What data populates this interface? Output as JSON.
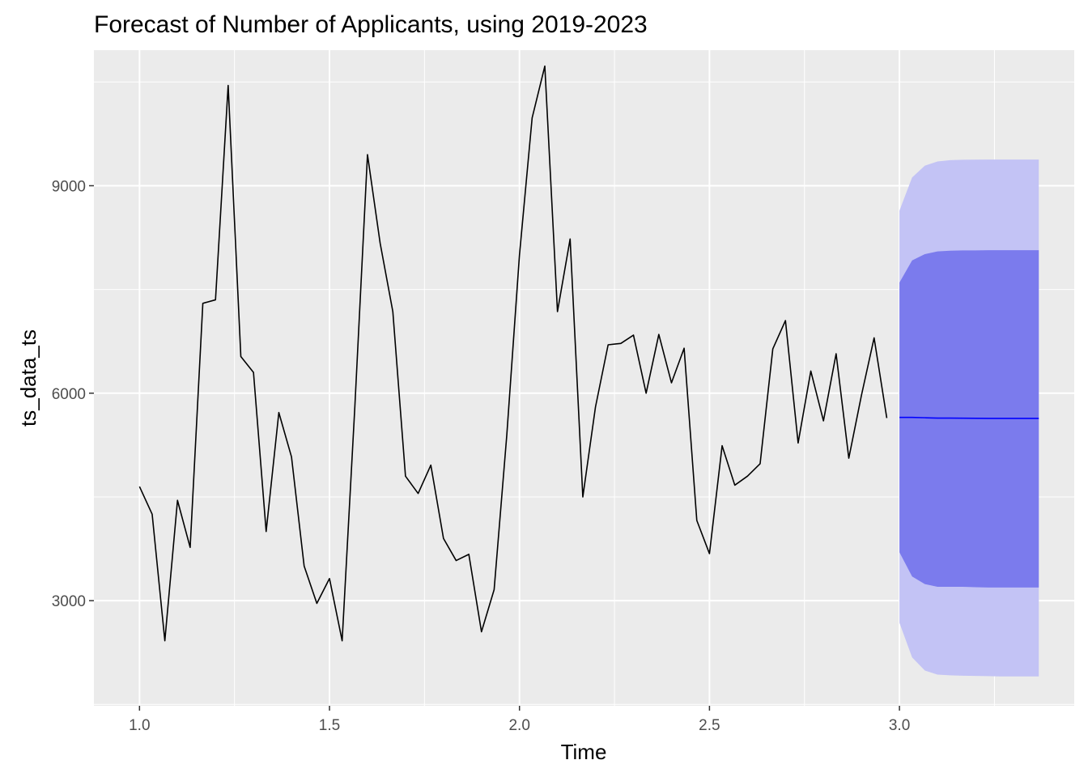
{
  "chart_data": {
    "type": "line",
    "title": "Forecast of Number of Applicants, using 2019-2023",
    "xlabel": "Time",
    "ylabel": "ts_data_ts",
    "xlim": [
      0.88,
      3.46
    ],
    "ylim": [
      1480,
      10960
    ],
    "x_ticks": [
      1.0,
      1.5,
      2.0,
      2.5,
      3.0
    ],
    "x_tick_labels": [
      "1.0",
      "1.5",
      "2.0",
      "2.5",
      "3.0"
    ],
    "y_ticks": [
      3000,
      6000,
      9000
    ],
    "y_tick_labels": [
      "3000",
      "6000",
      "9000"
    ],
    "grid": true,
    "background": "#ebebeb",
    "colors": {
      "series": "#000000",
      "forecast": "#0000ff",
      "band80": "#7b7bed",
      "band95": "#c3c3f5",
      "grid": "#ffffff"
    },
    "series": [
      {
        "x": [
          1.0,
          1.0333,
          1.0667,
          1.1,
          1.1333,
          1.1667,
          1.2,
          1.2333,
          1.2667,
          1.3,
          1.3333,
          1.3667,
          1.4,
          1.4333,
          1.4667,
          1.5,
          1.5333,
          1.5667,
          1.6,
          1.6333,
          1.6667,
          1.7,
          1.7333,
          1.7667,
          1.8,
          1.8333,
          1.8667,
          1.9,
          1.9333,
          1.9667,
          2.0,
          2.0333,
          2.0667,
          2.1,
          2.1333,
          2.1667,
          2.2,
          2.2333,
          2.2667,
          2.3,
          2.3333,
          2.3667,
          2.4,
          2.4333,
          2.4667,
          2.5,
          2.5333,
          2.5667,
          2.6,
          2.6333,
          2.6667,
          2.7,
          2.7333,
          2.7667,
          2.8,
          2.8333,
          2.8667,
          2.9,
          2.9333,
          2.9667
        ],
        "values": [
          4650,
          4250,
          2420,
          4450,
          3770,
          7300,
          7350,
          10450,
          6530,
          6300,
          4000,
          5720,
          5080,
          3500,
          2960,
          3320,
          2420,
          5800,
          9450,
          8170,
          7180,
          4800,
          4550,
          4960,
          3900,
          3580,
          3670,
          2550,
          3160,
          5400,
          8000,
          9980,
          10730,
          7180,
          8230,
          4500,
          5800,
          6700,
          6720,
          6840,
          6000,
          6850,
          6150,
          6650,
          4160,
          3680,
          5240,
          4670,
          4800,
          4980,
          6640,
          7050,
          5280,
          6320,
          5600,
          6570,
          5060,
          5970,
          6800,
          5640
        ]
      },
      {
        "x": [
          3.0,
          3.0333,
          3.0667,
          3.1,
          3.1333,
          3.1667,
          3.2,
          3.2333,
          3.2667,
          3.3,
          3.3333,
          3.3667
        ],
        "values": [
          5650,
          5650,
          5645,
          5640,
          5640,
          5638,
          5637,
          5636,
          5636,
          5635,
          5635,
          5635
        ],
        "lo80": [
          3700,
          3350,
          3240,
          3200,
          3200,
          3200,
          3195,
          3190,
          3190,
          3190,
          3190,
          3190
        ],
        "hi80": [
          7600,
          7920,
          8010,
          8050,
          8060,
          8065,
          8065,
          8068,
          8068,
          8068,
          8068,
          8068
        ],
        "lo95": [
          2680,
          2180,
          1990,
          1930,
          1920,
          1915,
          1912,
          1908,
          1905,
          1905,
          1905,
          1905
        ],
        "hi95": [
          8640,
          9120,
          9290,
          9350,
          9370,
          9375,
          9377,
          9378,
          9378,
          9378,
          9378,
          9378
        ]
      }
    ]
  }
}
